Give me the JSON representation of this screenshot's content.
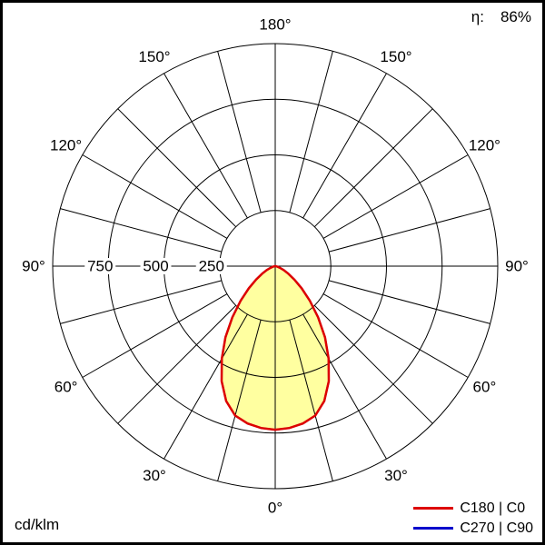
{
  "header": {
    "efficiency_label": "η:",
    "efficiency_value": "86%"
  },
  "footer": {
    "units_label": "cd/klm"
  },
  "legend": [
    {
      "label": "C180 | C0",
      "color": "#dd0000"
    },
    {
      "label": "C270 | C90",
      "color": "#0000cc"
    }
  ],
  "chart_data": {
    "type": "line",
    "subtype": "polar photometric luminous-intensity distribution",
    "units": "cd/klm",
    "efficiency": "86%",
    "angle_grid_step_deg": 15,
    "radial_max": 1000,
    "radial_ticks": [
      {
        "value": 250,
        "text": "250"
      },
      {
        "value": 500,
        "text": "500"
      },
      {
        "value": 750,
        "text": "750"
      }
    ],
    "angle_labels": [
      {
        "deg": 0,
        "text": "0°"
      },
      {
        "deg": 30,
        "text": "30°"
      },
      {
        "deg": 60,
        "text": "60°"
      },
      {
        "deg": 90,
        "text": "90°"
      },
      {
        "deg": 120,
        "text": "120°"
      },
      {
        "deg": 150,
        "text": "150°"
      },
      {
        "deg": 180,
        "text": "180°"
      }
    ],
    "legend_position": "bottom-right",
    "series": [
      {
        "name": "C180 | C0",
        "color": "#dd0000",
        "fill": "#ffffa0",
        "symmetric": true,
        "gamma_deg": [
          0,
          5,
          10,
          15,
          20,
          25,
          30,
          35,
          40,
          45,
          50,
          55,
          60,
          65,
          70,
          75,
          80,
          85,
          90
        ],
        "values_cd_klm": [
          735,
          730,
          718,
          695,
          645,
          570,
          480,
          390,
          300,
          220,
          155,
          105,
          68,
          42,
          22,
          10,
          4,
          1,
          0
        ]
      },
      {
        "name": "C270 | C90",
        "color": "#0000cc",
        "symmetric": true,
        "gamma_deg": [
          0,
          5,
          10,
          15,
          20,
          25,
          30,
          35,
          40,
          45,
          50,
          55,
          60,
          65,
          70,
          75,
          80,
          85,
          90
        ],
        "values_cd_klm": [
          735,
          730,
          718,
          695,
          645,
          570,
          480,
          390,
          300,
          220,
          155,
          105,
          68,
          42,
          22,
          10,
          4,
          1,
          0
        ]
      }
    ]
  }
}
